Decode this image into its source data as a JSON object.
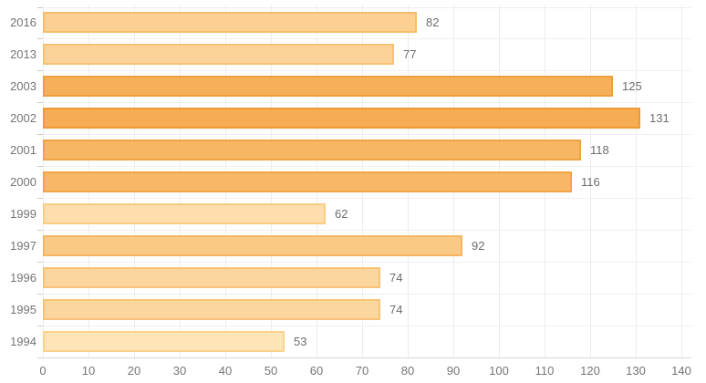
{
  "chart_data": {
    "type": "bar",
    "orientation": "horizontal",
    "title": "",
    "xlabel": "",
    "ylabel": "",
    "categories": [
      "2016",
      "2013",
      "2003",
      "2002",
      "2001",
      "2000",
      "1999",
      "1997",
      "1996",
      "1995",
      "1994"
    ],
    "values": [
      82,
      77,
      125,
      131,
      118,
      116,
      62,
      92,
      74,
      74,
      53
    ],
    "value_labels": [
      "82",
      "77",
      "125",
      "131",
      "118",
      "116",
      "62",
      "92",
      "74",
      "74",
      "53"
    ],
    "xlim": [
      0,
      140
    ],
    "x_ticks": [
      0,
      10,
      20,
      30,
      40,
      50,
      60,
      70,
      80,
      90,
      100,
      110,
      120,
      130,
      140
    ],
    "grid": true,
    "legend": "none",
    "heat_rule": {
      "min_value": 53,
      "max_value": 131,
      "min_fill": "#FEE5B8",
      "max_fill": "#F5AC52",
      "min_stroke": "#FBD28E",
      "max_stroke": "#EE9A36"
    },
    "colors": {
      "axis_label": "#757575",
      "value_label": "#6D6D6D",
      "gridline_vertical": "#ECECEC",
      "gridline_horizontal": "#EFEFEF",
      "axis_line": "#D9D9D9",
      "category_tick": "#CCCCCC",
      "background": "#FFFFFF"
    }
  }
}
